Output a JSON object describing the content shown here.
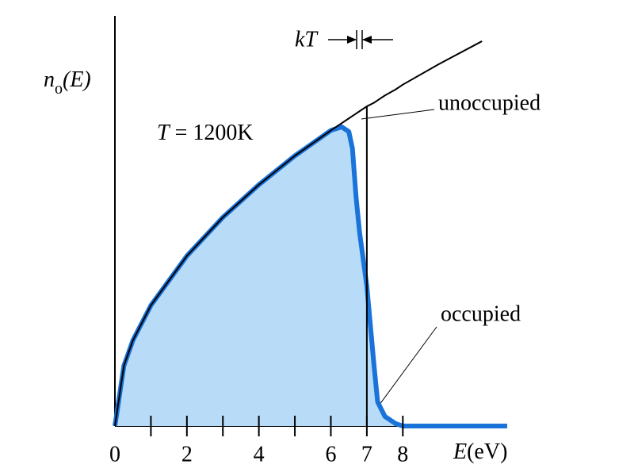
{
  "chart_data": {
    "type": "line",
    "title": [
      "T",
      " = 1200K"
    ],
    "ylabel": [
      "n",
      "o",
      "(E)"
    ],
    "xlabel": [
      "E",
      "(eV)"
    ],
    "kt_label": "kT",
    "annotations": [
      "unoccupied",
      "occupied"
    ],
    "x": [
      0,
      0.25,
      0.5,
      1,
      2,
      3,
      4,
      5,
      6,
      6.3,
      6.5,
      6.6,
      6.7,
      6.8,
      7,
      7.2,
      7.3,
      7.5,
      7.8,
      8,
      9,
      10.2,
      10.9
    ],
    "series": [
      {
        "color": "#1a73d9",
        "fill": "#b8dcf8",
        "values": [
          0,
          0.5,
          0.71,
          1,
          1.41,
          1.73,
          2,
          2.24,
          2.45,
          2.48,
          2.44,
          2.3,
          1.9,
          1.6,
          1.16,
          0.5,
          0.2,
          0.08,
          0.02,
          0,
          0,
          0,
          0
        ]
      },
      {
        "color": "#000000",
        "values": [
          0,
          0.5,
          0.71,
          1,
          1.41,
          1.73,
          2,
          2.24,
          2.45,
          2.51,
          2.55,
          2.57,
          2.59,
          2.61,
          2.65,
          2.68,
          2.7,
          2.74,
          2.79,
          2.83,
          3,
          3.19,
          null
        ]
      }
    ],
    "xlim": [
      0,
      10.9
    ],
    "ylim": [
      0,
      3.4
    ],
    "xticks": [
      0,
      2,
      4,
      6,
      7,
      8
    ],
    "xminor_ticks": [
      1,
      3,
      5
    ]
  }
}
